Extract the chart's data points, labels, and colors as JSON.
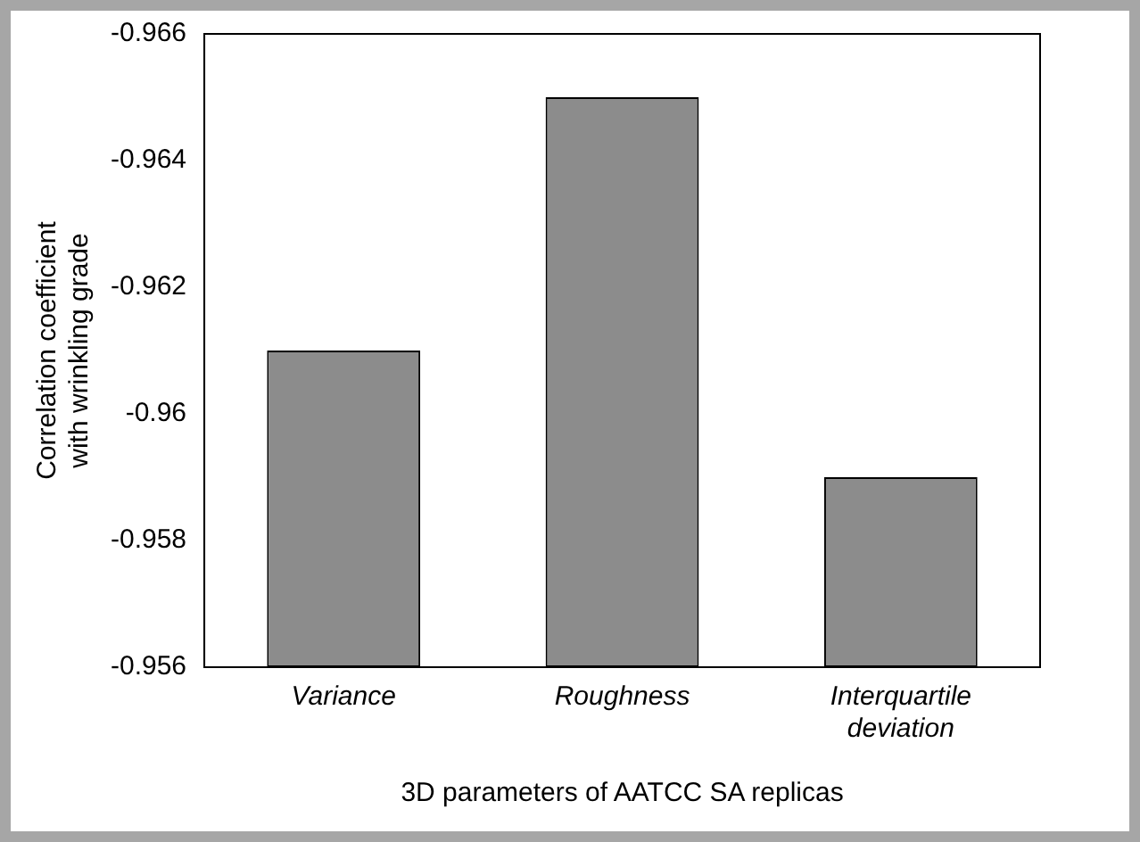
{
  "chart_data": {
    "type": "bar",
    "xlabel": "3D parameters of AATCC SA replicas",
    "ylabel": "Correlation coefficient with wrinkling grade",
    "categories": [
      "Variance",
      "Roughness",
      "Interquartile deviation"
    ],
    "values": [
      -0.961,
      -0.965,
      -0.959
    ],
    "color": "#8c8c8c",
    "ylim": [
      -0.956,
      -0.966
    ],
    "yticks": [
      -0.956,
      -0.958,
      -0.96,
      -0.962,
      -0.964,
      -0.966
    ],
    "grid": false
  }
}
